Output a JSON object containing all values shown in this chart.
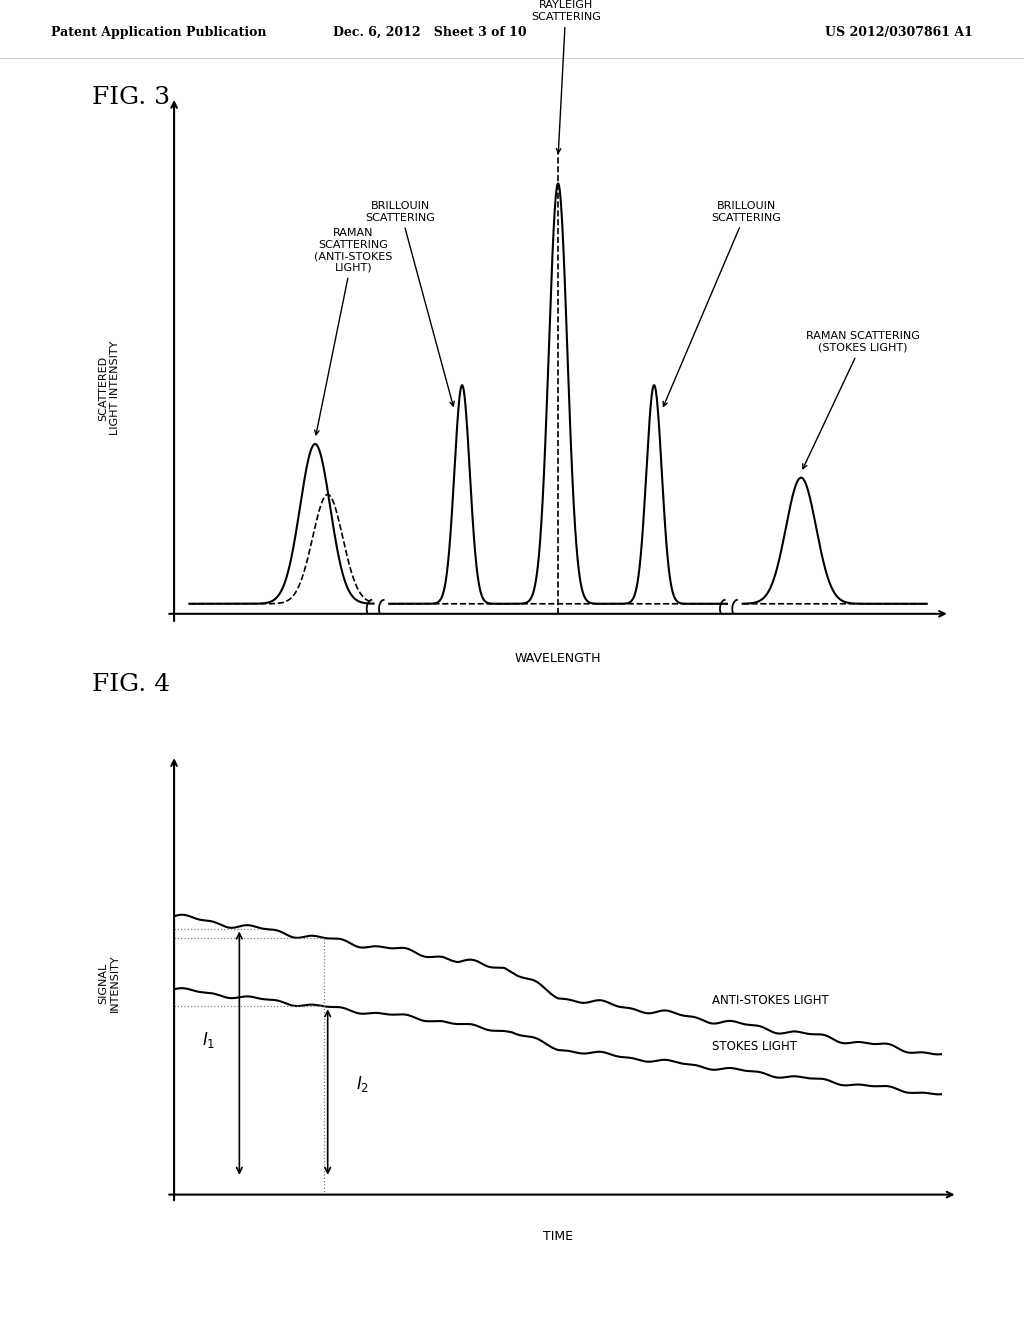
{
  "background_color": "#ffffff",
  "header_left": "Patent Application Publication",
  "header_mid": "Dec. 6, 2012   Sheet 3 of 10",
  "header_right": "US 2012/0307861 A1",
  "fig3_label": "FIG. 3",
  "fig3_ylabel": "SCATTERED\nLIGHT INTENSITY",
  "fig3_xlabel": "WAVELENGTH",
  "fig4_label": "FIG. 4",
  "fig4_ylabel": "SIGNAL\nINTENSITY",
  "fig4_xlabel": "TIME",
  "label_rayleigh": "RAYLEIGH\nSCATTERING",
  "label_brillouin_left": "BRILLOUIN\nSCATTERING",
  "label_brillouin_right": "BRILLOUIN\nSCATTERING",
  "label_raman_anti": "RAMAN\nSCATTERING\n(ANTI-STOKES\nLIGHT)",
  "label_raman_stokes": "RAMAN SCATTERING\n(STOKES LIGHT)",
  "label_antistokes": "ANTI-STOKES LIGHT",
  "label_stokes": "STOKES LIGHT",
  "line_color": "#000000",
  "dashed_color": "#555555",
  "dotted_color": "#888888"
}
